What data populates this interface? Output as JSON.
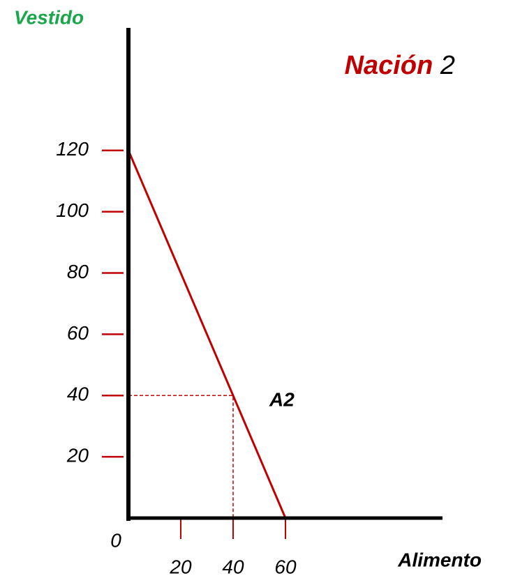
{
  "chart_data": {
    "type": "line",
    "title_parts": [
      "Nación",
      "2"
    ],
    "ylabel": "Vestido",
    "xlabel": "Alimento",
    "x": [
      0,
      60
    ],
    "series": [
      {
        "name": "Nación 2",
        "color": "#c00000",
        "values": [
          120,
          0
        ]
      }
    ],
    "xlim": [
      0,
      120
    ],
    "ylim": [
      0,
      160
    ],
    "xticks": [
      20,
      40,
      60
    ],
    "yticks": [
      20,
      40,
      60,
      80,
      100,
      120
    ],
    "origin": 0,
    "annotation": {
      "label": "A2",
      "x": 40,
      "y": 40
    }
  }
}
